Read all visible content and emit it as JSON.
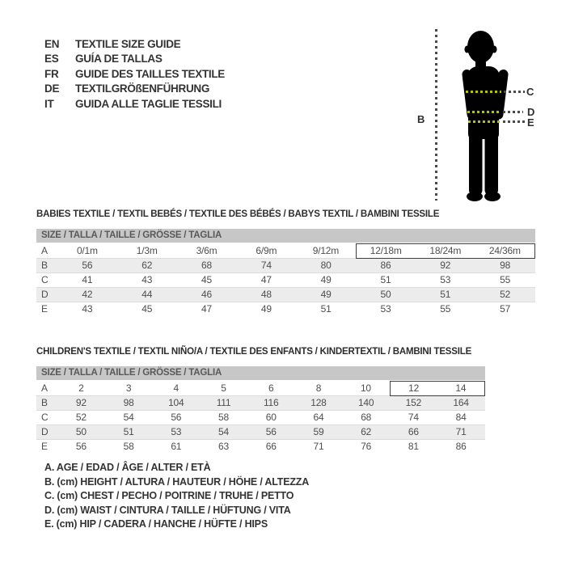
{
  "languages": [
    {
      "code": "EN",
      "title": "TEXTILE SIZE GUIDE"
    },
    {
      "code": "ES",
      "title": "GUÍA DE TALLAS"
    },
    {
      "code": "FR",
      "title": "GUIDE DES TAILLES TEXTILE"
    },
    {
      "code": "DE",
      "title": "TEXTILGRÖßENFÜHRUNG"
    },
    {
      "code": "IT",
      "title": "GUIDA ALLE TAGLIE TESSILI"
    }
  ],
  "figure": {
    "height_label": "B",
    "chest_label": "C",
    "waist_label": "D",
    "hip_label": "E",
    "colors": {
      "silhouette": "#000000",
      "line_on_body": "#b5c400",
      "line_outside": "#4a4a4a"
    }
  },
  "babies_table": {
    "title": "BABIES TEXTILE / TEXTIL BEBÉS / TEXTILE DES BÉBÉS / BABYS TEXTIL / BAMBINI TESSILE",
    "header": "SIZE / TALLA / TAILLE / GRÖSSE / TAGLIA",
    "rows": [
      {
        "label": "A",
        "values": [
          "0/1m",
          "1/3m",
          "3/6m",
          "6/9m",
          "9/12m",
          "12/18m",
          "18/24m",
          "24/36m"
        ]
      },
      {
        "label": "B",
        "values": [
          "56",
          "62",
          "68",
          "74",
          "80",
          "86",
          "92",
          "98"
        ]
      },
      {
        "label": "C",
        "values": [
          "41",
          "43",
          "45",
          "47",
          "49",
          "51",
          "53",
          "55"
        ]
      },
      {
        "label": "D",
        "values": [
          "42",
          "44",
          "46",
          "48",
          "49",
          "50",
          "51",
          "52"
        ]
      },
      {
        "label": "E",
        "values": [
          "43",
          "45",
          "47",
          "49",
          "51",
          "53",
          "55",
          "57"
        ]
      }
    ],
    "highlight": {
      "row": "A",
      "from_value": "12/18m",
      "from_col": 5
    }
  },
  "children_table": {
    "title": "CHILDREN'S TEXTILE / TEXTIL NIÑO/A / TEXTILE DES ENFANTS / KINDERTEXTIL / BAMBINI TESSILE",
    "header": "SIZE / TALLA / TAILLE / GRÖSSE / TAGLIA",
    "rows": [
      {
        "label": "A",
        "values": [
          "2",
          "3",
          "4",
          "5",
          "6",
          "8",
          "10",
          "12",
          "14"
        ]
      },
      {
        "label": "B",
        "values": [
          "92",
          "98",
          "104",
          "111",
          "116",
          "128",
          "140",
          "152",
          "164"
        ]
      },
      {
        "label": "C",
        "values": [
          "52",
          "54",
          "56",
          "58",
          "60",
          "64",
          "68",
          "74",
          "84"
        ]
      },
      {
        "label": "D",
        "values": [
          "50",
          "51",
          "53",
          "54",
          "56",
          "59",
          "62",
          "66",
          "71"
        ]
      },
      {
        "label": "E",
        "values": [
          "56",
          "58",
          "61",
          "63",
          "66",
          "71",
          "76",
          "81",
          "86"
        ]
      }
    ],
    "highlight": {
      "row": "A",
      "from_value": "12",
      "from_col": 7
    }
  },
  "legend": [
    "A. AGE / EDAD / ÂGE / ALTER / ETÀ",
    "B. (cm) HEIGHT / ALTURA / HAUTEUR / HÖHE / ALTEZZA",
    "C. (cm) CHEST / PECHO / POITRINE / TRUHE / PETTO",
    "D. (cm) WAIST / CINTURA / TAILLE / HÜFTUNG / VITA",
    "E. (cm) HIP / CADERA / HANCHE / HÜFTE / HIPS"
  ],
  "colors": {
    "header_bar": "#c7c7c7",
    "alt_row": "#ececec",
    "table_text": "#4e4e4e",
    "title_text": "#2d2d2d",
    "highlight_border": "#3f3f3f",
    "accent_green": "#b5c400",
    "dash_gray": "#4a4a4a"
  }
}
